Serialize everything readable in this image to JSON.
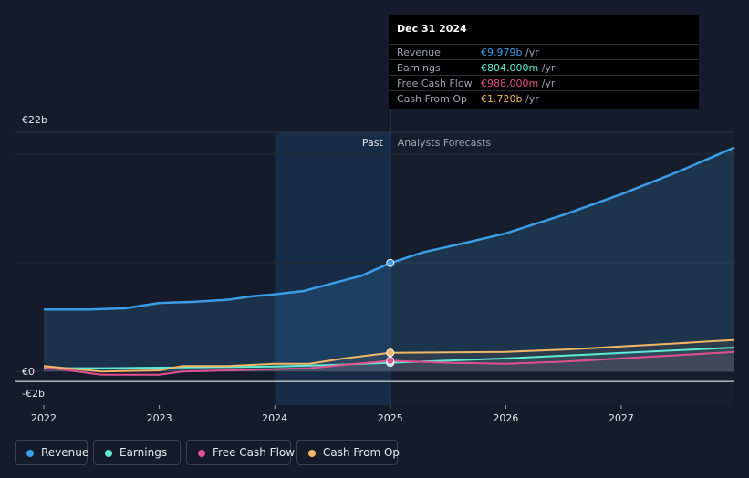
{
  "tooltip": {
    "date": "Dec 31 2024",
    "rows": [
      {
        "label": "Revenue",
        "value": "€9.979b",
        "unit": "/yr",
        "color": "#3b9de6"
      },
      {
        "label": "Earnings",
        "value": "€804.000m",
        "unit": "/yr",
        "color": "#5eead4"
      },
      {
        "label": "Free Cash Flow",
        "value": "€988.000m",
        "unit": "/yr",
        "color": "#e0508f"
      },
      {
        "label": "Cash From Op",
        "value": "€1.720b",
        "unit": "/yr",
        "color": "#f2b766"
      }
    ]
  },
  "chart_data": {
    "type": "line",
    "y_axis_labels": [
      "€22b",
      "€0",
      "-€2b"
    ],
    "ylim": [
      -2,
      22
    ],
    "xlim": [
      2022.0,
      2027.98
    ],
    "x_ticks": [
      "2022",
      "2023",
      "2024",
      "2025",
      "2026",
      "2027"
    ],
    "past_label": "Past",
    "forecast_label": "Analysts Forecasts",
    "divider_x": 2025.0,
    "past_shade_start": 2024.0,
    "legend_position": "bottom-left",
    "series": [
      {
        "name": "Revenue",
        "color": "#3b9de6",
        "x": [
          2022.0,
          2022.4,
          2022.7,
          2023.0,
          2023.3,
          2023.6,
          2023.8,
          2024.0,
          2024.25,
          2024.5,
          2024.75,
          2025.0,
          2025.3,
          2025.6,
          2026.0,
          2026.5,
          2027.0,
          2027.5,
          2027.98
        ],
        "y": [
          5.7,
          5.7,
          5.8,
          6.3,
          6.4,
          6.6,
          6.9,
          7.1,
          7.4,
          8.1,
          8.8,
          9.979,
          11.0,
          11.7,
          12.7,
          14.4,
          16.3,
          18.4,
          20.6
        ]
      },
      {
        "name": "Earnings",
        "color": "#5eead4",
        "x": [
          2022.0,
          2022.5,
          2023.0,
          2023.5,
          2024.0,
          2024.5,
          2025.0,
          2025.5,
          2026.0,
          2026.5,
          2027.0,
          2027.5,
          2027.98
        ],
        "y": [
          0.3,
          0.3,
          0.35,
          0.4,
          0.45,
          0.6,
          0.804,
          1.0,
          1.2,
          1.45,
          1.7,
          1.95,
          2.2
        ]
      },
      {
        "name": "Free Cash Flow",
        "color": "#e0508f",
        "x": [
          2022.0,
          2022.5,
          2023.0,
          2023.2,
          2023.6,
          2024.0,
          2024.3,
          2024.6,
          2025.0,
          2025.5,
          2026.0,
          2026.5,
          2027.0,
          2027.5,
          2027.98
        ],
        "y": [
          0.4,
          -0.3,
          -0.3,
          0.0,
          0.1,
          0.2,
          0.3,
          0.6,
          0.988,
          0.8,
          0.7,
          0.9,
          1.2,
          1.5,
          1.8
        ]
      },
      {
        "name": "Cash From Op",
        "color": "#f2b766",
        "x": [
          2022.0,
          2022.5,
          2023.0,
          2023.2,
          2023.6,
          2024.0,
          2024.3,
          2024.6,
          2025.0,
          2025.5,
          2026.0,
          2026.5,
          2027.0,
          2027.5,
          2027.98
        ],
        "y": [
          0.5,
          0.0,
          0.1,
          0.5,
          0.5,
          0.7,
          0.7,
          1.2,
          1.72,
          1.75,
          1.8,
          2.0,
          2.3,
          2.6,
          2.9
        ]
      }
    ]
  }
}
